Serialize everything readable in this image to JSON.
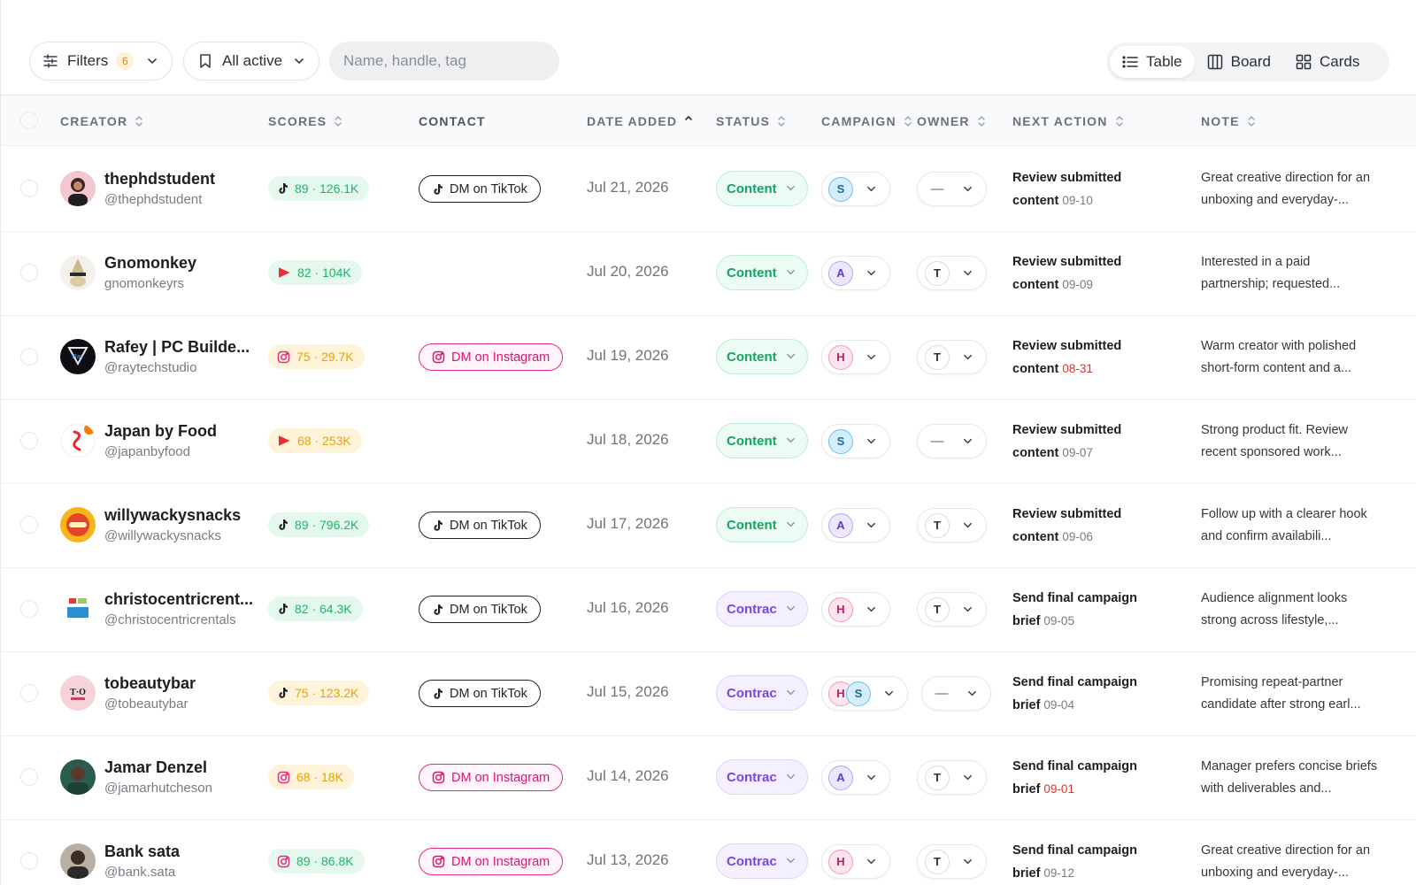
{
  "toolbar": {
    "filters_label": "Filters",
    "filters_count": "6",
    "saved_view_label": "All active",
    "search_placeholder": "Name, handle, tag",
    "views": [
      {
        "label": "Table",
        "icon": "list-icon",
        "active": true
      },
      {
        "label": "Board",
        "icon": "columns-icon",
        "active": false
      },
      {
        "label": "Cards",
        "icon": "grid-icon",
        "active": false
      }
    ]
  },
  "columns": {
    "creator": "CREATOR",
    "scores": "SCORES",
    "contact": "CONTACT",
    "date_added": "DATE ADDED",
    "status": "STATUS",
    "campaign": "CAMPAIGN",
    "owner": "OWNER",
    "next_action": "NEXT ACTION",
    "note": "NOTE"
  },
  "colors": {
    "score_green": "#21b36a",
    "score_amber": "#e3a208",
    "status_content": "#17a463",
    "status_contract": "#7a45e0",
    "instagram": "#d8176f",
    "overdue": "#e0312f"
  },
  "rows": [
    {
      "name": "thephdstudent",
      "handle": "@thephdstudent",
      "avatar": "woman-portrait",
      "platform": "tiktok",
      "score": "89 · 126.1K",
      "score_tone": "green",
      "contact": "DM on TikTok",
      "contact_type": "tiktok",
      "date": "Jul 21, 2026",
      "status": "Content",
      "status_type": "content",
      "campaign": [
        "S"
      ],
      "owner": "—",
      "next_action": "Review submitted content",
      "next_date": "09-10",
      "overdue": false,
      "note": "Great creative direction for an unboxing and everyday-..."
    },
    {
      "name": "Gnomonkey",
      "handle": "gnomonkeyrs",
      "avatar": "gnome-hat",
      "platform": "youtube",
      "score": "82 · 104K",
      "score_tone": "green",
      "contact": "",
      "contact_type": "none",
      "date": "Jul 20, 2026",
      "status": "Content",
      "status_type": "content",
      "campaign": [
        "A"
      ],
      "owner": "T",
      "next_action": "Review submitted content",
      "next_date": "09-09",
      "overdue": false,
      "note": "Interested in a paid partnership; requested..."
    },
    {
      "name": "Rafey | PC Builde...",
      "handle": "@raytechstudio",
      "avatar": "tech-logo",
      "platform": "instagram",
      "score": "75 · 29.7K",
      "score_tone": "amber",
      "contact": "DM on Instagram",
      "contact_type": "instagram",
      "date": "Jul 19, 2026",
      "status": "Content",
      "status_type": "content",
      "campaign": [
        "H"
      ],
      "owner": "T",
      "next_action": "Review submitted content",
      "next_date": "08-31",
      "overdue": true,
      "note": "Warm creator with polished short-form content and a..."
    },
    {
      "name": "Japan by Food",
      "handle": "@japanbyfood",
      "avatar": "food-logo",
      "platform": "youtube",
      "score": "68 · 253K",
      "score_tone": "amber",
      "contact": "",
      "contact_type": "none",
      "date": "Jul 18, 2026",
      "status": "Content",
      "status_type": "content",
      "campaign": [
        "S"
      ],
      "owner": "—",
      "next_action": "Review submitted content",
      "next_date": "09-07",
      "overdue": false,
      "note": "Strong product fit. Review recent sponsored work..."
    },
    {
      "name": "willywackysnacks",
      "handle": "@willywackysnacks",
      "avatar": "snack-logo",
      "platform": "tiktok",
      "score": "89 · 796.2K",
      "score_tone": "green",
      "contact": "DM on TikTok",
      "contact_type": "tiktok",
      "date": "Jul 17, 2026",
      "status": "Content",
      "status_type": "content",
      "campaign": [
        "A"
      ],
      "owner": "T",
      "next_action": "Review submitted content",
      "next_date": "09-06",
      "overdue": false,
      "note": "Follow up with a clearer hook and confirm availabili..."
    },
    {
      "name": "christocentricrent...",
      "handle": "@christocentricrentals",
      "avatar": "rentals-logo",
      "platform": "tiktok",
      "score": "82 · 64.3K",
      "score_tone": "green",
      "contact": "DM on TikTok",
      "contact_type": "tiktok",
      "date": "Jul 16, 2026",
      "status": "Contrac",
      "status_type": "contract",
      "campaign": [
        "H"
      ],
      "owner": "T",
      "next_action": "Send final campaign brief",
      "next_date": "09-05",
      "overdue": false,
      "note": "Audience alignment looks strong across lifestyle,..."
    },
    {
      "name": "tobeautybar",
      "handle": "@tobeautybar",
      "avatar": "beauty-logo",
      "platform": "tiktok",
      "score": "75 · 123.2K",
      "score_tone": "amber",
      "contact": "DM on TikTok",
      "contact_type": "tiktok",
      "date": "Jul 15, 2026",
      "status": "Contrac",
      "status_type": "contract",
      "campaign": [
        "H",
        "S"
      ],
      "owner": "—",
      "next_action": "Send final campaign brief",
      "next_date": "09-04",
      "overdue": false,
      "note": "Promising repeat-partner candidate after strong earl..."
    },
    {
      "name": "Jamar Denzel",
      "handle": "@jamarhutcheson",
      "avatar": "man-portrait",
      "platform": "instagram",
      "score": "68 · 18K",
      "score_tone": "amber",
      "contact": "DM on Instagram",
      "contact_type": "instagram",
      "date": "Jul 14, 2026",
      "status": "Contrac",
      "status_type": "contract",
      "campaign": [
        "A"
      ],
      "owner": "T",
      "next_action": "Send final campaign brief",
      "next_date": "09-01",
      "overdue": true,
      "note": "Manager prefers concise briefs with deliverables and..."
    },
    {
      "name": "Bank sata",
      "handle": "@bank.sata",
      "avatar": "man-portrait-2",
      "platform": "instagram",
      "score": "89 · 86.8K",
      "score_tone": "green",
      "contact": "DM on Instagram",
      "contact_type": "instagram",
      "date": "Jul 13, 2026",
      "status": "Contrac",
      "status_type": "contract",
      "campaign": [
        "H"
      ],
      "owner": "T",
      "next_action": "Send final campaign brief",
      "next_date": "09-12",
      "overdue": false,
      "note": "Great creative direction for an unboxing and everyday-..."
    }
  ]
}
